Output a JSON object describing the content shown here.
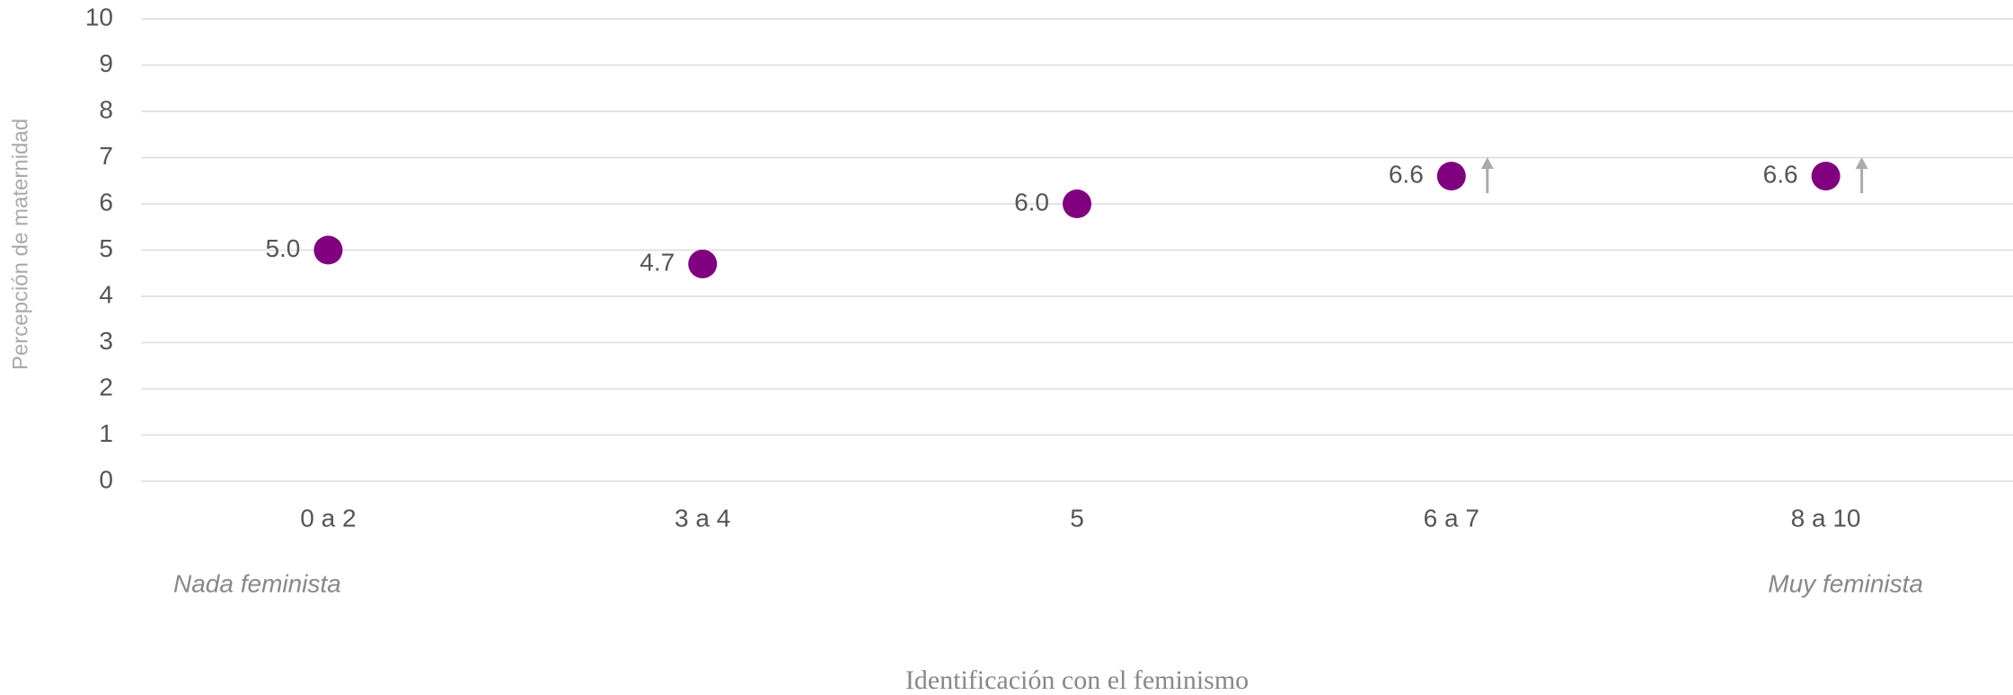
{
  "chart_data": {
    "type": "dot",
    "categories": [
      "0 a 2",
      "3 a 4",
      "5",
      "6 a 7",
      "8 a 10"
    ],
    "values": [
      5.0,
      4.7,
      6.0,
      6.6,
      6.6
    ],
    "value_labels": [
      "5.0",
      "4.7",
      "6.0",
      "6.6",
      "6.6"
    ],
    "up_arrow": [
      false,
      false,
      false,
      true,
      true
    ],
    "color": "#800080",
    "arrow_color": "#aaaaaa",
    "ylim": [
      0,
      10
    ],
    "yticks": [
      0,
      1,
      2,
      3,
      4,
      5,
      6,
      7,
      8,
      9,
      10
    ],
    "grid": true,
    "x_label": "Identificación con el feminismo",
    "y_label": "Percepción de maternidad",
    "annotations": [
      "Nada feminista",
      "Muy feminista"
    ]
  }
}
